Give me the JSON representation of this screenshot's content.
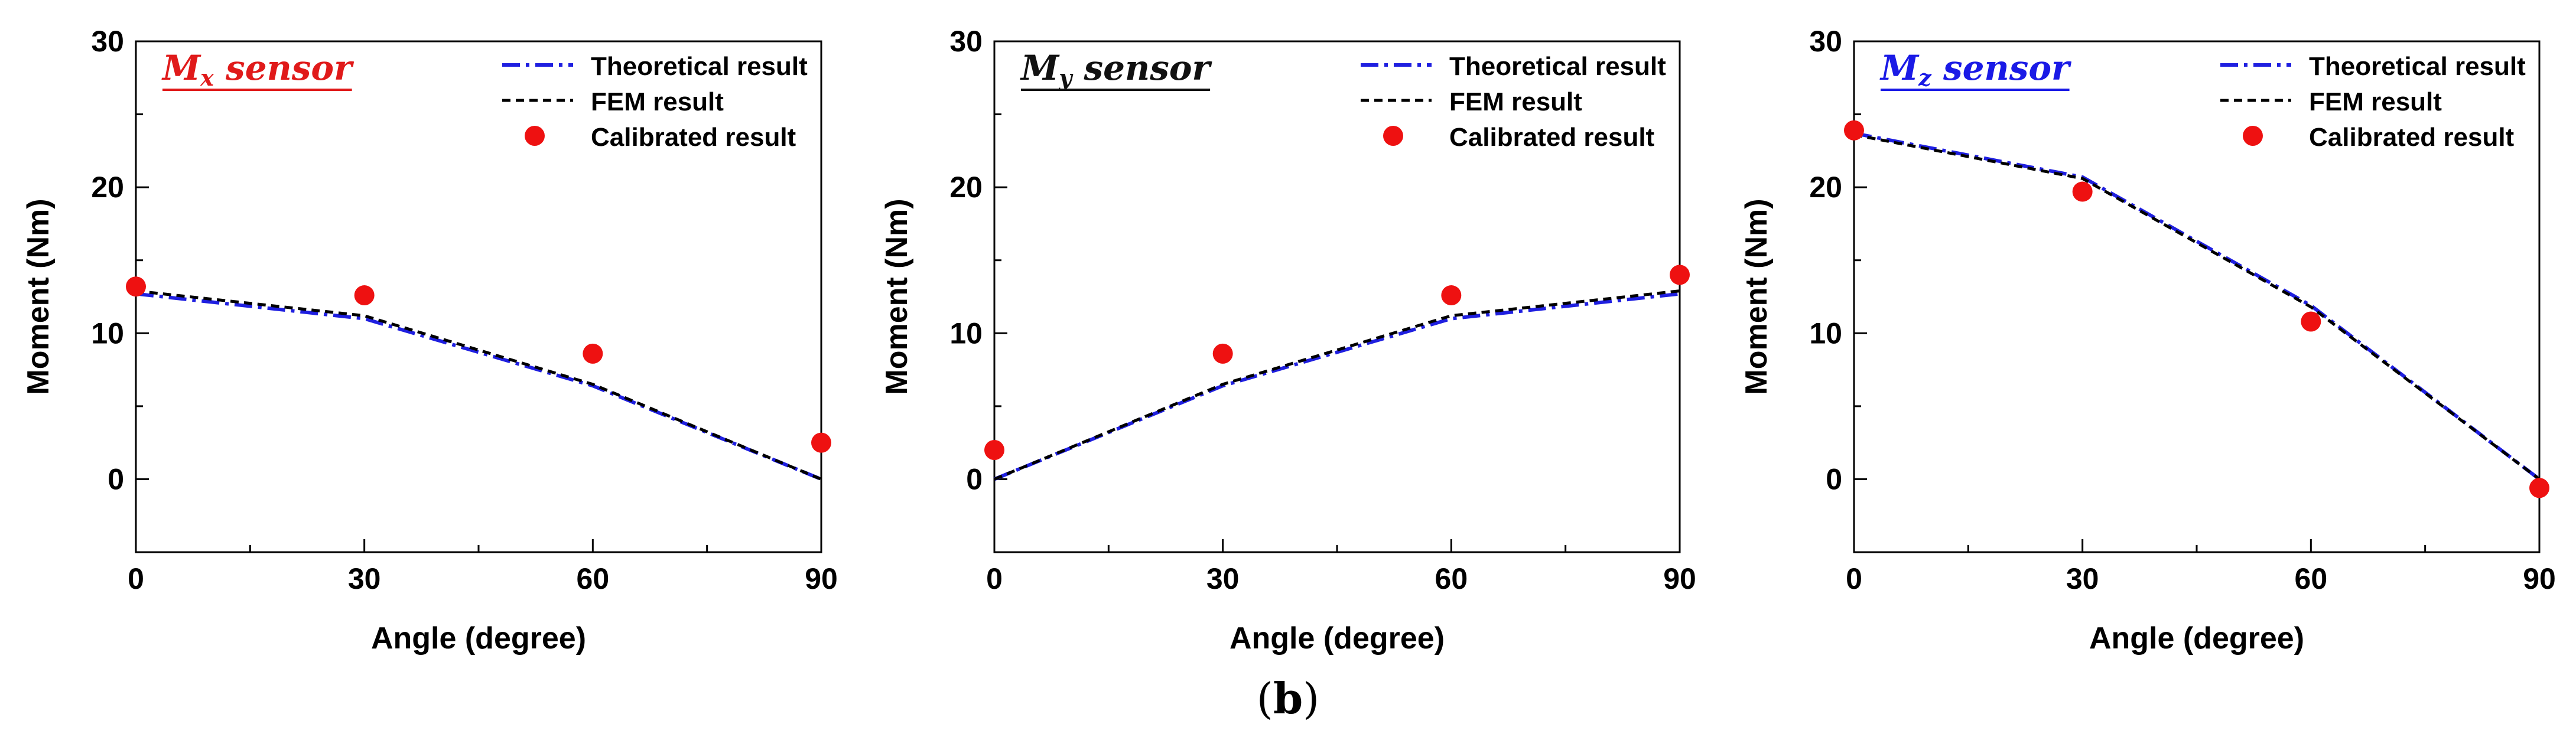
{
  "figure_label": "b",
  "colors": {
    "theory": "#1f1fe0",
    "fem": "#000000",
    "calibrated": "#ee1111",
    "title_mx": "#e01a1a",
    "title_my": "#111111",
    "title_mz": "#1a1ae6"
  },
  "chart_data": [
    {
      "type": "line",
      "title_main": "M",
      "title_sub": "x",
      "title_rest": " sensor",
      "title_color_key": "title_mx",
      "xlabel": "Angle (degree)",
      "ylabel": "Moment (Nm)",
      "xlim": [
        0,
        90
      ],
      "ylim": [
        -5,
        30
      ],
      "xticks": [
        "0",
        "30",
        "60",
        "90"
      ],
      "yticks": [
        "0",
        "10",
        "20",
        "30"
      ],
      "x": [
        0,
        30,
        60,
        90
      ],
      "series": [
        {
          "name": "Theoretical result",
          "style": "dashdot",
          "values": [
            12.7,
            11.0,
            6.4,
            0.0
          ]
        },
        {
          "name": "FEM result",
          "style": "dashed",
          "values": [
            12.9,
            11.2,
            6.5,
            0.0
          ]
        },
        {
          "name": "Calibrated result",
          "style": "marker",
          "values": [
            13.2,
            12.6,
            8.6,
            2.5
          ]
        }
      ]
    },
    {
      "type": "line",
      "title_main": "M",
      "title_sub": "y",
      "title_rest": " sensor",
      "title_color_key": "title_my",
      "xlabel": "Angle (degree)",
      "ylabel": "Moment (Nm)",
      "xlim": [
        0,
        90
      ],
      "ylim": [
        -5,
        30
      ],
      "xticks": [
        "0",
        "30",
        "60",
        "90"
      ],
      "yticks": [
        "0",
        "10",
        "20",
        "30"
      ],
      "x": [
        0,
        30,
        60,
        90
      ],
      "series": [
        {
          "name": "Theoretical result",
          "style": "dashdot",
          "values": [
            0.0,
            6.4,
            11.0,
            12.7
          ]
        },
        {
          "name": "FEM result",
          "style": "dashed",
          "values": [
            0.0,
            6.5,
            11.2,
            12.9
          ]
        },
        {
          "name": "Calibrated result",
          "style": "marker",
          "values": [
            2.0,
            8.6,
            12.6,
            14.0
          ]
        }
      ]
    },
    {
      "type": "line",
      "title_main": "M",
      "title_sub": "z",
      "title_rest": " sensor",
      "title_color_key": "title_mz",
      "xlabel": "Angle (degree)",
      "ylabel": "Moment (Nm)",
      "xlim": [
        0,
        90
      ],
      "ylim": [
        -5,
        30
      ],
      "xticks": [
        "0",
        "30",
        "60",
        "90"
      ],
      "yticks": [
        "0",
        "10",
        "20",
        "30"
      ],
      "x": [
        0,
        30,
        60,
        90
      ],
      "series": [
        {
          "name": "Theoretical result",
          "style": "dashdot",
          "values": [
            23.7,
            20.7,
            11.9,
            0.0
          ]
        },
        {
          "name": "FEM result",
          "style": "dashed",
          "values": [
            23.6,
            20.6,
            11.8,
            0.0
          ]
        },
        {
          "name": "Calibrated result",
          "style": "marker",
          "values": [
            23.9,
            19.7,
            10.8,
            -0.6
          ]
        }
      ]
    }
  ]
}
